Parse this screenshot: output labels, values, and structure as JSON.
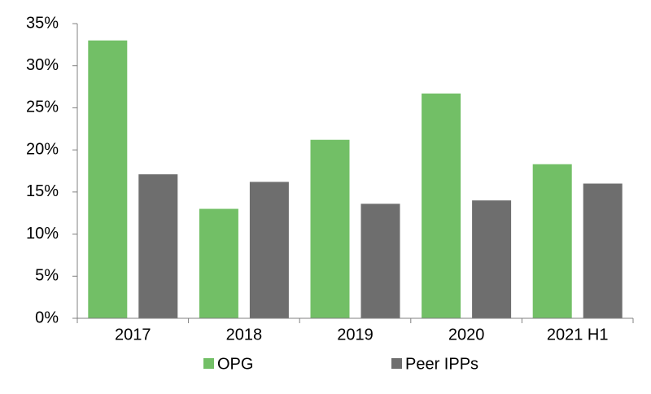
{
  "chart_data": {
    "type": "bar",
    "categories": [
      "2017",
      "2018",
      "2019",
      "2020",
      "2021 H1"
    ],
    "series": [
      {
        "name": "OPG",
        "color": "#72bf66",
        "values": [
          33.0,
          13.0,
          21.2,
          26.7,
          18.3
        ]
      },
      {
        "name": "Peer IPPs",
        "color": "#6e6e6e",
        "values": [
          17.1,
          16.2,
          13.6,
          14.0,
          16.0
        ]
      }
    ],
    "ylim": [
      0,
      35
    ],
    "yticks": [
      {
        "value": 0,
        "label": "0%"
      },
      {
        "value": 5,
        "label": "5%"
      },
      {
        "value": 10,
        "label": "10%"
      },
      {
        "value": 15,
        "label": "15%"
      },
      {
        "value": 20,
        "label": "20%"
      },
      {
        "value": 25,
        "label": "25%"
      },
      {
        "value": 30,
        "label": "30%"
      },
      {
        "value": 35,
        "label": "35%"
      }
    ],
    "grid": false,
    "legend": "bottom"
  }
}
